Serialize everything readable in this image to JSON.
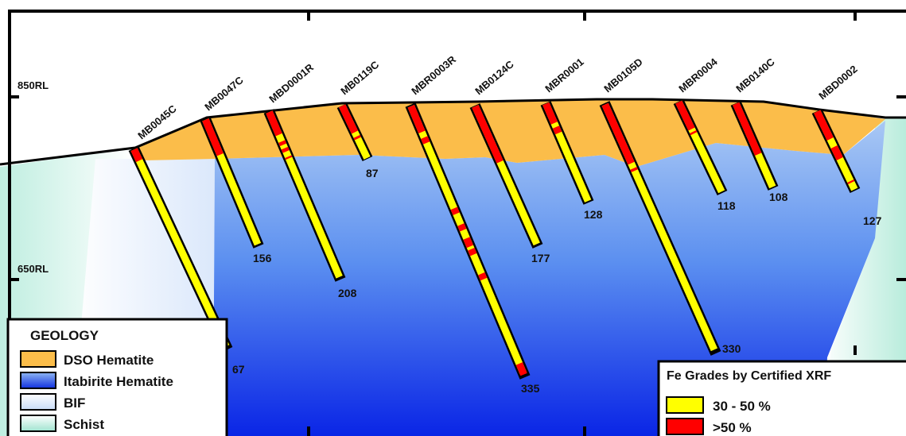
{
  "rl_labels": [
    "850RL",
    "650RL"
  ],
  "holes": [
    {
      "name": "MB0045C",
      "depth": 67
    },
    {
      "name": "MB0047C",
      "depth": 156
    },
    {
      "name": "MBD0001R",
      "depth": 208
    },
    {
      "name": "MB0119C",
      "depth": 87
    },
    {
      "name": "MBR0003R",
      "depth": 335
    },
    {
      "name": "MB0124C",
      "depth": 177
    },
    {
      "name": "MBR0001",
      "depth": 128
    },
    {
      "name": "MB0105D",
      "depth": 330
    },
    {
      "name": "MBR0004",
      "depth": 118
    },
    {
      "name": "MB0140C",
      "depth": 108
    },
    {
      "name": "MBD0002",
      "depth": 127
    }
  ],
  "geology_legend": {
    "title": "GEOLOGY",
    "items": [
      "DSO Hematite",
      "Itabirite Hematite",
      "BIF",
      "Schist"
    ]
  },
  "grades_legend": {
    "title": "Fe Grades by Certified XRF",
    "items": [
      "30 - 50 %",
      ">50 %"
    ]
  }
}
